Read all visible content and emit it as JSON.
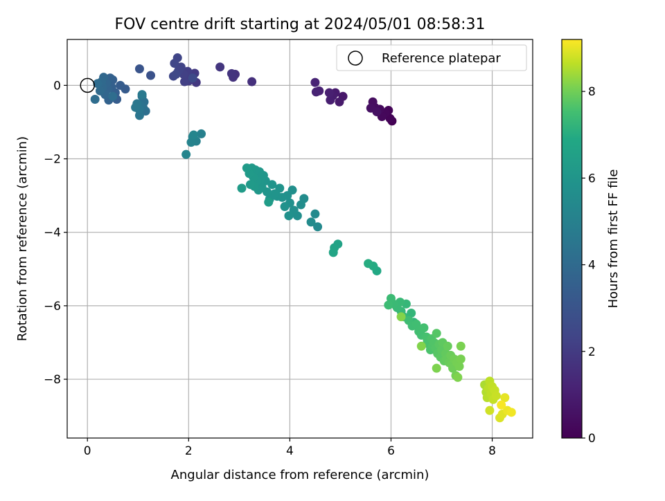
{
  "chart_data": {
    "type": "scatter",
    "title": "FOV centre drift starting at 2024/05/01 08:58:31",
    "xlabel": "Angular distance from reference (arcmin)",
    "ylabel": "Rotation from reference (arcmin)",
    "xlim": [
      -0.4,
      8.8
    ],
    "ylim": [
      -9.6,
      1.25
    ],
    "xticks": [
      0,
      2,
      4,
      6,
      8
    ],
    "yticks": [
      0,
      -2,
      -4,
      -6,
      -8
    ],
    "grid": true,
    "legend": {
      "position": "top-right",
      "entries": [
        {
          "label": "Reference platepar",
          "marker": "open-circle"
        }
      ]
    },
    "reference_point": {
      "x": 0,
      "y": 0
    },
    "colorbar": {
      "label": "Hours from first FF file",
      "colormap": "viridis",
      "min": 0,
      "max": 9.2,
      "ticks": [
        0,
        2,
        4,
        6,
        8
      ]
    },
    "points": [
      {
        "x": 6.02,
        "y": -0.97,
        "h": 0.0
      },
      {
        "x": 5.98,
        "y": -0.9,
        "h": 0.1
      },
      {
        "x": 5.95,
        "y": -0.68,
        "h": 0.15
      },
      {
        "x": 5.88,
        "y": -0.75,
        "h": 0.2
      },
      {
        "x": 5.82,
        "y": -0.85,
        "h": 0.25
      },
      {
        "x": 5.78,
        "y": -0.65,
        "h": 0.3
      },
      {
        "x": 5.72,
        "y": -0.68,
        "h": 0.35
      },
      {
        "x": 5.68,
        "y": -0.6,
        "h": 0.4
      },
      {
        "x": 5.64,
        "y": -0.45,
        "h": 0.45
      },
      {
        "x": 5.6,
        "y": -0.62,
        "h": 0.5
      },
      {
        "x": 5.72,
        "y": -0.72,
        "h": 0.55
      },
      {
        "x": 5.05,
        "y": -0.3,
        "h": 0.8
      },
      {
        "x": 4.98,
        "y": -0.45,
        "h": 0.85
      },
      {
        "x": 4.9,
        "y": -0.2,
        "h": 0.9
      },
      {
        "x": 4.85,
        "y": -0.28,
        "h": 0.95
      },
      {
        "x": 4.8,
        "y": -0.4,
        "h": 1.0
      },
      {
        "x": 4.78,
        "y": -0.2,
        "h": 1.05
      },
      {
        "x": 4.58,
        "y": -0.15,
        "h": 1.1
      },
      {
        "x": 4.52,
        "y": -0.18,
        "h": 1.15
      },
      {
        "x": 4.5,
        "y": 0.08,
        "h": 1.2
      },
      {
        "x": 3.25,
        "y": 0.1,
        "h": 1.6
      },
      {
        "x": 2.92,
        "y": 0.3,
        "h": 1.65
      },
      {
        "x": 2.88,
        "y": 0.22,
        "h": 1.7
      },
      {
        "x": 2.85,
        "y": 0.32,
        "h": 1.75
      },
      {
        "x": 2.62,
        "y": 0.5,
        "h": 1.8
      },
      {
        "x": 2.15,
        "y": 0.08,
        "h": 1.9
      },
      {
        "x": 2.12,
        "y": 0.33,
        "h": 1.95
      },
      {
        "x": 2.05,
        "y": 0.3,
        "h": 2.0
      },
      {
        "x": 2.0,
        "y": 0.12,
        "h": 2.05
      },
      {
        "x": 1.98,
        "y": 0.38,
        "h": 2.1
      },
      {
        "x": 1.92,
        "y": 0.1,
        "h": 2.15
      },
      {
        "x": 1.9,
        "y": 0.3,
        "h": 2.2
      },
      {
        "x": 1.85,
        "y": 0.5,
        "h": 2.25
      },
      {
        "x": 1.8,
        "y": 0.4,
        "h": 2.3
      },
      {
        "x": 1.78,
        "y": 0.75,
        "h": 2.35
      },
      {
        "x": 1.72,
        "y": 0.6,
        "h": 2.4
      },
      {
        "x": 1.7,
        "y": 0.25,
        "h": 2.45
      },
      {
        "x": 1.75,
        "y": 0.3,
        "h": 2.5
      },
      {
        "x": 2.08,
        "y": 0.2,
        "h": 2.55
      },
      {
        "x": 1.25,
        "y": 0.27,
        "h": 2.9
      },
      {
        "x": 1.03,
        "y": 0.45,
        "h": 3.0
      },
      {
        "x": 0.75,
        "y": -0.1,
        "h": 3.3
      },
      {
        "x": 0.65,
        "y": 0.0,
        "h": 3.35
      },
      {
        "x": 0.58,
        "y": -0.38,
        "h": 3.4
      },
      {
        "x": 0.55,
        "y": -0.2,
        "h": 3.45
      },
      {
        "x": 0.5,
        "y": 0.15,
        "h": 3.5
      },
      {
        "x": 0.48,
        "y": -0.05,
        "h": 3.55
      },
      {
        "x": 0.45,
        "y": 0.2,
        "h": 3.6
      },
      {
        "x": 0.42,
        "y": -0.4,
        "h": 3.65
      },
      {
        "x": 0.4,
        "y": -0.1,
        "h": 3.7
      },
      {
        "x": 0.38,
        "y": 0.05,
        "h": 3.75
      },
      {
        "x": 0.35,
        "y": -0.25,
        "h": 3.8
      },
      {
        "x": 0.32,
        "y": 0.22,
        "h": 3.85
      },
      {
        "x": 0.3,
        "y": -0.05,
        "h": 3.9
      },
      {
        "x": 0.28,
        "y": 0.1,
        "h": 3.95
      },
      {
        "x": 0.25,
        "y": -0.15,
        "h": 4.0
      },
      {
        "x": 0.2,
        "y": 0.05,
        "h": 4.05
      },
      {
        "x": 0.15,
        "y": -0.38,
        "h": 4.1
      },
      {
        "x": 0.5,
        "y": -0.3,
        "h": 4.12
      },
      {
        "x": 1.15,
        "y": -0.7,
        "h": 4.2
      },
      {
        "x": 1.12,
        "y": -0.45,
        "h": 4.25
      },
      {
        "x": 1.1,
        "y": -0.6,
        "h": 4.3
      },
      {
        "x": 1.08,
        "y": -0.3,
        "h": 4.35
      },
      {
        "x": 1.05,
        "y": -0.55,
        "h": 4.4
      },
      {
        "x": 1.03,
        "y": -0.82,
        "h": 4.45
      },
      {
        "x": 1.02,
        "y": -0.65,
        "h": 4.5
      },
      {
        "x": 0.98,
        "y": -0.5,
        "h": 4.55
      },
      {
        "x": 0.95,
        "y": -0.6,
        "h": 4.6
      },
      {
        "x": 1.08,
        "y": -0.25,
        "h": 4.65
      },
      {
        "x": 2.25,
        "y": -1.32,
        "h": 5.0
      },
      {
        "x": 2.15,
        "y": -1.52,
        "h": 5.05
      },
      {
        "x": 2.08,
        "y": -1.4,
        "h": 5.1
      },
      {
        "x": 2.05,
        "y": -1.55,
        "h": 5.15
      },
      {
        "x": 1.95,
        "y": -1.88,
        "h": 5.2
      },
      {
        "x": 2.1,
        "y": -1.35,
        "h": 5.22
      },
      {
        "x": 4.55,
        "y": -3.85,
        "h": 5.4
      },
      {
        "x": 4.5,
        "y": -3.5,
        "h": 5.45
      },
      {
        "x": 4.42,
        "y": -3.72,
        "h": 5.5
      },
      {
        "x": 4.28,
        "y": -3.08,
        "h": 5.55
      },
      {
        "x": 4.22,
        "y": -3.25,
        "h": 5.6
      },
      {
        "x": 4.15,
        "y": -3.55,
        "h": 5.65
      },
      {
        "x": 4.08,
        "y": -3.4,
        "h": 5.7
      },
      {
        "x": 4.05,
        "y": -2.85,
        "h": 5.72
      },
      {
        "x": 4.0,
        "y": -3.2,
        "h": 5.75
      },
      {
        "x": 3.98,
        "y": -3.55,
        "h": 5.78
      },
      {
        "x": 3.95,
        "y": -3.0,
        "h": 5.8
      },
      {
        "x": 3.9,
        "y": -3.3,
        "h": 5.82
      },
      {
        "x": 3.85,
        "y": -3.05,
        "h": 5.85
      },
      {
        "x": 3.8,
        "y": -2.8,
        "h": 5.88
      },
      {
        "x": 3.75,
        "y": -3.02,
        "h": 5.9
      },
      {
        "x": 3.7,
        "y": -2.95,
        "h": 5.92
      },
      {
        "x": 3.65,
        "y": -2.7,
        "h": 5.94
      },
      {
        "x": 3.6,
        "y": -3.1,
        "h": 5.96
      },
      {
        "x": 3.55,
        "y": -2.9,
        "h": 5.98
      },
      {
        "x": 3.52,
        "y": -2.6,
        "h": 6.0
      },
      {
        "x": 3.48,
        "y": -2.45,
        "h": 6.02
      },
      {
        "x": 3.45,
        "y": -2.78,
        "h": 6.04
      },
      {
        "x": 3.42,
        "y": -2.55,
        "h": 6.06
      },
      {
        "x": 3.4,
        "y": -2.35,
        "h": 6.08
      },
      {
        "x": 3.38,
        "y": -2.85,
        "h": 6.1
      },
      {
        "x": 3.35,
        "y": -2.6,
        "h": 6.12
      },
      {
        "x": 3.32,
        "y": -2.3,
        "h": 6.14
      },
      {
        "x": 3.3,
        "y": -2.75,
        "h": 6.16
      },
      {
        "x": 3.28,
        "y": -2.5,
        "h": 6.18
      },
      {
        "x": 3.25,
        "y": -2.25,
        "h": 6.2
      },
      {
        "x": 3.22,
        "y": -2.7,
        "h": 6.22
      },
      {
        "x": 3.2,
        "y": -2.4,
        "h": 6.24
      },
      {
        "x": 3.15,
        "y": -2.25,
        "h": 6.26
      },
      {
        "x": 3.05,
        "y": -2.8,
        "h": 6.28
      },
      {
        "x": 3.58,
        "y": -3.18,
        "h": 6.3
      },
      {
        "x": 4.95,
        "y": -4.32,
        "h": 6.6
      },
      {
        "x": 4.88,
        "y": -4.42,
        "h": 6.65
      },
      {
        "x": 4.86,
        "y": -4.55,
        "h": 6.7
      },
      {
        "x": 5.72,
        "y": -5.05,
        "h": 6.9
      },
      {
        "x": 5.65,
        "y": -4.92,
        "h": 6.95
      },
      {
        "x": 5.55,
        "y": -4.85,
        "h": 7.0
      },
      {
        "x": 6.45,
        "y": -6.45,
        "h": 7.2
      },
      {
        "x": 6.4,
        "y": -6.2,
        "h": 7.25
      },
      {
        "x": 6.3,
        "y": -5.95,
        "h": 7.28
      },
      {
        "x": 6.25,
        "y": -6.3,
        "h": 7.3
      },
      {
        "x": 6.2,
        "y": -6.15,
        "h": 7.32
      },
      {
        "x": 6.18,
        "y": -5.9,
        "h": 7.34
      },
      {
        "x": 6.12,
        "y": -6.05,
        "h": 7.36
      },
      {
        "x": 6.05,
        "y": -5.95,
        "h": 7.38
      },
      {
        "x": 6.0,
        "y": -5.8,
        "h": 7.4
      },
      {
        "x": 5.95,
        "y": -5.98,
        "h": 7.42
      },
      {
        "x": 6.35,
        "y": -6.4,
        "h": 7.44
      },
      {
        "x": 6.42,
        "y": -6.55,
        "h": 7.46
      },
      {
        "x": 6.5,
        "y": -6.5,
        "h": 7.48
      },
      {
        "x": 6.55,
        "y": -6.7,
        "h": 7.5
      },
      {
        "x": 6.6,
        "y": -6.8,
        "h": 7.52
      },
      {
        "x": 6.65,
        "y": -6.6,
        "h": 7.54
      },
      {
        "x": 6.7,
        "y": -6.85,
        "h": 7.56
      },
      {
        "x": 6.72,
        "y": -6.95,
        "h": 7.58
      },
      {
        "x": 6.75,
        "y": -7.05,
        "h": 7.6
      },
      {
        "x": 6.78,
        "y": -7.2,
        "h": 7.62
      },
      {
        "x": 6.8,
        "y": -6.9,
        "h": 7.64
      },
      {
        "x": 6.82,
        "y": -7.1,
        "h": 7.66
      },
      {
        "x": 6.85,
        "y": -7.0,
        "h": 7.68
      },
      {
        "x": 6.88,
        "y": -7.15,
        "h": 7.7
      },
      {
        "x": 6.9,
        "y": -6.75,
        "h": 7.72
      },
      {
        "x": 6.92,
        "y": -7.3,
        "h": 7.74
      },
      {
        "x": 6.95,
        "y": -7.05,
        "h": 7.76
      },
      {
        "x": 6.98,
        "y": -7.4,
        "h": 7.78
      },
      {
        "x": 7.0,
        "y": -7.2,
        "h": 7.8
      },
      {
        "x": 7.02,
        "y": -7.0,
        "h": 7.82
      },
      {
        "x": 7.05,
        "y": -7.5,
        "h": 7.84
      },
      {
        "x": 7.08,
        "y": -7.3,
        "h": 7.86
      },
      {
        "x": 7.1,
        "y": -7.45,
        "h": 7.88
      },
      {
        "x": 7.12,
        "y": -7.1,
        "h": 7.9
      },
      {
        "x": 7.15,
        "y": -7.55,
        "h": 7.92
      },
      {
        "x": 7.18,
        "y": -7.35,
        "h": 7.94
      },
      {
        "x": 7.2,
        "y": -7.6,
        "h": 7.96
      },
      {
        "x": 7.22,
        "y": -7.7,
        "h": 7.98
      },
      {
        "x": 7.25,
        "y": -7.45,
        "h": 8.0
      },
      {
        "x": 7.28,
        "y": -7.9,
        "h": 8.02
      },
      {
        "x": 7.3,
        "y": -7.55,
        "h": 8.04
      },
      {
        "x": 7.35,
        "y": -7.65,
        "h": 8.06
      },
      {
        "x": 7.38,
        "y": -7.45,
        "h": 8.08
      },
      {
        "x": 7.38,
        "y": -7.1,
        "h": 8.1
      },
      {
        "x": 6.9,
        "y": -7.7,
        "h": 8.12
      },
      {
        "x": 7.32,
        "y": -7.95,
        "h": 8.14
      },
      {
        "x": 6.6,
        "y": -7.1,
        "h": 8.16
      },
      {
        "x": 6.2,
        "y": -6.3,
        "h": 8.18
      },
      {
        "x": 7.85,
        "y": -8.15,
        "h": 8.5
      },
      {
        "x": 7.88,
        "y": -8.35,
        "h": 8.55
      },
      {
        "x": 7.9,
        "y": -8.5,
        "h": 8.6
      },
      {
        "x": 7.92,
        "y": -8.25,
        "h": 8.62
      },
      {
        "x": 7.95,
        "y": -8.05,
        "h": 8.64
      },
      {
        "x": 7.98,
        "y": -8.4,
        "h": 8.66
      },
      {
        "x": 8.0,
        "y": -8.2,
        "h": 8.68
      },
      {
        "x": 8.02,
        "y": -8.55,
        "h": 8.7
      },
      {
        "x": 8.05,
        "y": -8.3,
        "h": 8.72
      },
      {
        "x": 8.08,
        "y": -8.45,
        "h": 8.74
      },
      {
        "x": 7.95,
        "y": -8.85,
        "h": 8.8
      },
      {
        "x": 8.15,
        "y": -9.05,
        "h": 8.9
      },
      {
        "x": 8.2,
        "y": -8.95,
        "h": 8.95
      },
      {
        "x": 8.25,
        "y": -8.5,
        "h": 9.0
      },
      {
        "x": 8.3,
        "y": -8.85,
        "h": 9.05
      },
      {
        "x": 8.38,
        "y": -8.9,
        "h": 9.1
      },
      {
        "x": 8.18,
        "y": -8.7,
        "h": 9.15
      }
    ]
  }
}
